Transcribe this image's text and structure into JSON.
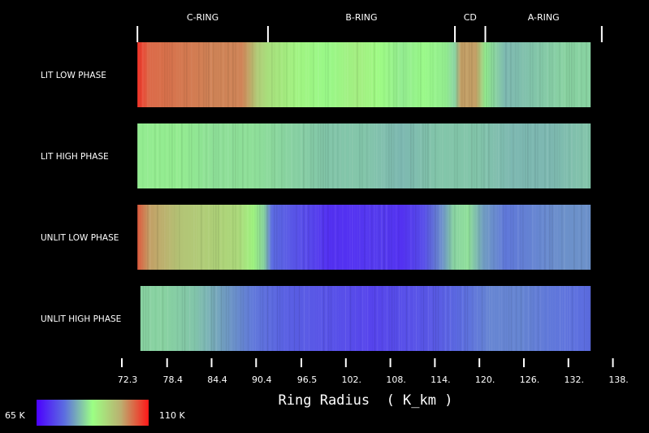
{
  "chart_data": {
    "type": "heatmap",
    "xlabel": "Ring Radius  ( K_km )",
    "x_range": [
      72.3,
      138.0
    ],
    "x_ticks": [
      "72.3",
      "78.4",
      "84.4",
      "90.4",
      "96.5",
      "102.",
      "108.",
      "114.",
      "120.",
      "126.",
      "132.",
      "138."
    ],
    "x_tick_values": [
      72.3,
      78.4,
      84.4,
      90.4,
      96.5,
      102.5,
      108.5,
      114.5,
      120.5,
      126.5,
      132.5,
      138.5
    ],
    "ring_regions": [
      {
        "label": "C-RING",
        "start": 74.4,
        "end": 92.0
      },
      {
        "label": "B-RING",
        "start": 92.0,
        "end": 117.2
      },
      {
        "label": "CD",
        "start": 117.2,
        "end": 121.3
      },
      {
        "label": "A-RING",
        "start": 121.3,
        "end": 137.0
      }
    ],
    "colorbar": {
      "min_label": "65 K",
      "max_label": "110 K",
      "min": 65,
      "max": 110,
      "colormap": [
        "#4b00ff",
        "#5c6ee0",
        "#9cff84",
        "#bbb070",
        "#ff1818"
      ]
    },
    "series": [
      {
        "name": "LIT LOW PHASE",
        "radius_start": 74.4,
        "radius_end": 135.5,
        "profile_radius": [
          74.4,
          76.0,
          80.0,
          85.0,
          88.5,
          90.5,
          92.0,
          96.0,
          100.0,
          104.0,
          107.0,
          110.0,
          113.0,
          116.0,
          117.2,
          118.0,
          120.0,
          121.3,
          124.0,
          128.0,
          132.0,
          135.5
        ],
        "profile_temp_K": [
          108,
          104,
          103,
          102,
          102,
          95,
          92,
          89,
          87,
          90,
          88,
          86,
          87,
          86,
          84,
          100,
          100,
          86,
          82,
          83,
          84,
          84
        ]
      },
      {
        "name": "LIT HIGH PHASE",
        "radius_start": 74.4,
        "radius_end": 135.5,
        "profile_radius": [
          74.4,
          80.0,
          85.0,
          90.0,
          95.0,
          100.0,
          105.0,
          110.0,
          115.0,
          120.0,
          125.0,
          130.0,
          135.5
        ],
        "profile_temp_K": [
          86,
          86,
          85,
          85,
          84,
          83,
          83,
          82,
          83,
          83,
          82,
          82,
          83
        ]
      },
      {
        "name": "UNLIT LOW PHASE",
        "radius_start": 74.4,
        "radius_end": 135.5,
        "profile_radius": [
          74.4,
          76.0,
          80.0,
          85.0,
          88.0,
          90.0,
          91.5,
          92.5,
          95.0,
          98.0,
          100.0,
          103.0,
          107.0,
          110.0,
          113.0,
          115.5,
          117.0,
          119.0,
          121.0,
          124.0,
          128.0,
          132.0,
          135.5
        ],
        "profile_temp_K": [
          105,
          100,
          96,
          94,
          93,
          89,
          84,
          76,
          74,
          72,
          70,
          70,
          71,
          70,
          73,
          79,
          84,
          85,
          80,
          77,
          78,
          79,
          79
        ]
      },
      {
        "name": "UNLIT HIGH PHASE",
        "radius_start": 74.8,
        "radius_end": 135.5,
        "profile_radius": [
          74.8,
          78.0,
          82.0,
          86.0,
          90.0,
          94.0,
          98.0,
          102.0,
          106.0,
          110.0,
          114.0,
          118.0,
          122.0,
          126.0,
          130.0,
          135.5
        ],
        "profile_temp_K": [
          84,
          84,
          83,
          80,
          77,
          75,
          74,
          73,
          72,
          73,
          74,
          76,
          78,
          78,
          77,
          76
        ]
      }
    ]
  }
}
